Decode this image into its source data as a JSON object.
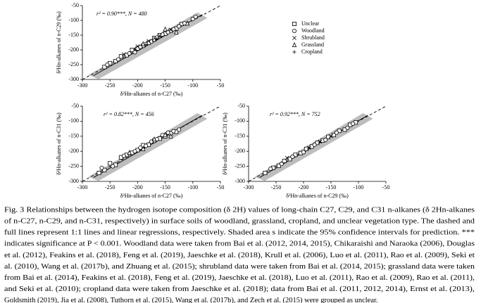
{
  "chart_data": [
    {
      "type": "scatter",
      "annotation": "r² = 0.90***, N = 480",
      "x_label": "δ²Hn-alkanes of n-C27 (‰)",
      "y_label": "δ²Hn-alkanes of n-C29 (‰)",
      "xlim": [
        -300,
        -50
      ],
      "ylim": [
        -300,
        -50
      ],
      "xticks": [
        -300,
        -250,
        -200,
        -150,
        -100,
        -50
      ],
      "yticks": [
        -300,
        -250,
        -200,
        -150,
        -100,
        -50
      ],
      "legend": "upper right",
      "series": [
        {
          "name": "Unclear",
          "marker": "square",
          "color": "#000000",
          "x": [
            -260,
            -250,
            -240,
            -230,
            -220,
            -210,
            -200,
            -190,
            -180,
            -170,
            -160,
            -150,
            -140,
            -130,
            -120
          ],
          "values": [
            -258,
            -245,
            -238,
            -222,
            -218,
            -200,
            -195,
            -186,
            -176,
            -160,
            -150,
            -145,
            -135,
            -128,
            -112
          ]
        },
        {
          "name": "Woodland",
          "marker": "circle",
          "color": "#000000",
          "x": [
            -255,
            -235,
            -215,
            -205,
            -195,
            -185,
            -175,
            -165,
            -155,
            -145,
            -135,
            -125,
            -115,
            -100,
            -95
          ],
          "values": [
            -250,
            -232,
            -212,
            -208,
            -190,
            -180,
            -172,
            -158,
            -148,
            -140,
            -130,
            -120,
            -110,
            -95,
            -88
          ]
        },
        {
          "name": "Shrubland",
          "marker": "x",
          "color": "#000000",
          "x": [
            -225,
            -200,
            -180,
            -160,
            -140
          ],
          "values": [
            -215,
            -188,
            -170,
            -152,
            -132
          ]
        },
        {
          "name": "Grassland",
          "marker": "triangle",
          "color": "#000000",
          "x": [
            -190,
            -170,
            -150,
            -130,
            -110
          ],
          "values": [
            -180,
            -165,
            -130,
            -140,
            -110
          ]
        },
        {
          "name": "Cropland",
          "marker": "plus",
          "color": "#000000",
          "x": [
            -205,
            -185,
            -165
          ],
          "values": [
            -198,
            -182,
            -162
          ]
        }
      ]
    },
    {
      "type": "scatter",
      "annotation": "r² = 0.82***, N = 456",
      "x_label": "δ²Hn-alkanes of n-C27 (‰)",
      "y_label": "δ²Hn-alkanes of n-C31 (‰)",
      "xlim": [
        -300,
        -50
      ],
      "ylim": [
        -300,
        -50
      ],
      "xticks": [
        -300,
        -250,
        -200,
        -150,
        -100,
        -50
      ],
      "yticks": [
        -300,
        -250,
        -200,
        -150,
        -100,
        -50
      ],
      "series": [
        {
          "marker": "square",
          "color": "#000000",
          "x": [
            -270,
            -260,
            -250,
            -240,
            -230,
            -220,
            -210,
            -200,
            -190,
            -180,
            -170,
            -160,
            -150,
            -140,
            -130
          ],
          "values": [
            -272,
            -262,
            -240,
            -245,
            -220,
            -212,
            -205,
            -196,
            -180,
            -178,
            -165,
            -158,
            -150,
            -140,
            -135
          ]
        },
        {
          "marker": "circle",
          "color": "#000000",
          "x": [
            -265,
            -245,
            -225,
            -205,
            -195,
            -185,
            -175,
            -165,
            -155,
            -145,
            -135,
            -125
          ],
          "values": [
            -255,
            -250,
            -215,
            -200,
            -188,
            -182,
            -168,
            -160,
            -146,
            -138,
            -133,
            -128
          ]
        },
        {
          "marker": "triangle",
          "color": "#000000",
          "x": [
            -215,
            -190,
            -170,
            -150,
            -140
          ],
          "values": [
            -205,
            -192,
            -160,
            -145,
            -150
          ]
        }
      ]
    },
    {
      "type": "scatter",
      "annotation": "r² = 0.92***, N = 752",
      "x_label": "δ²Hn-alkanes of n-C29 (‰)",
      "y_label": "δ²Hn-alkanes of n-C31 (‰)",
      "xlim": [
        -300,
        -50
      ],
      "ylim": [
        -300,
        -50
      ],
      "xticks": [
        -300,
        -250,
        -200,
        -150,
        -100,
        -50
      ],
      "yticks": [
        -300,
        -250,
        -200,
        -150,
        -100,
        -50
      ],
      "series": [
        {
          "marker": "square",
          "color": "#000000",
          "x": [
            -270,
            -255,
            -245,
            -235,
            -225,
            -215,
            -205,
            -195,
            -185,
            -175,
            -165,
            -155,
            -145,
            -135,
            -125,
            -115,
            -105
          ],
          "values": [
            -272,
            -255,
            -248,
            -232,
            -226,
            -212,
            -206,
            -192,
            -184,
            -172,
            -164,
            -152,
            -146,
            -132,
            -128,
            -112,
            -104
          ]
        },
        {
          "marker": "circle",
          "color": "#000000",
          "x": [
            -260,
            -240,
            -220,
            -200,
            -180,
            -160,
            -140,
            -120,
            -110
          ],
          "values": [
            -258,
            -242,
            -218,
            -203,
            -178,
            -162,
            -138,
            -122,
            -108
          ]
        },
        {
          "marker": "x",
          "color": "#000000",
          "x": [
            -230,
            -190,
            -170,
            -150
          ],
          "values": [
            -222,
            -188,
            -168,
            -150
          ]
        }
      ]
    }
  ],
  "caption": {
    "lines": [
      "Fig. 3 Relationships between the hydrogen isotope composition (δ 2H) values of long-chain C27, C29, and C31 n-alkanes (δ 2Hn-alkanes",
      "of n-C27, n-C29, and n-C31, respectively) in surface soils of woodland, grassland, cropland, and unclear vegetation type. The dashed and",
      "full lines represent 1:1 lines and  linear  regressions,  respectively. Shaded area s indicate  the 95%  confidence intervals for prediction. ***",
      "indicates significance at P < 0.001. Woodland data were taken from Bai et al. (2012, 2014, 2015), Chikaraishi and Naraoka (2006), Douglas",
      "et al. (2012), Feakins et al. (2018), Feng et al. (2019), Jaeschke et al. (2018), Krull et al. (2006), Luo et al. (2011), Rao et al. (2009), Seki et",
      "al. (2010), Wang et al. (2017b), and Zhuang et al. (2015); shrubland data were taken from Bai et al. (2014, 2015); grassland data were taken",
      "from Bai et al. (2014), Feakins et al. (2018), Feng et al. (2019), Jaeschke et al. (2018), Luo et al. (2011), Rao et al. (2009), Rao et al. (2011),",
      "and  Seki et al. (2010); cropland  data  were  taken  from  Jaeschke  et  al. (2018); data from Bai et al. (2011, 2012, 2014), Ernst et al. (2013),",
      "Goldsmith (2019), Jia et al. (2008), Tuthorn et al. (2015), Wang et al. (2017b), and Zech et al. (2015) were grouped as unclear."
    ]
  }
}
